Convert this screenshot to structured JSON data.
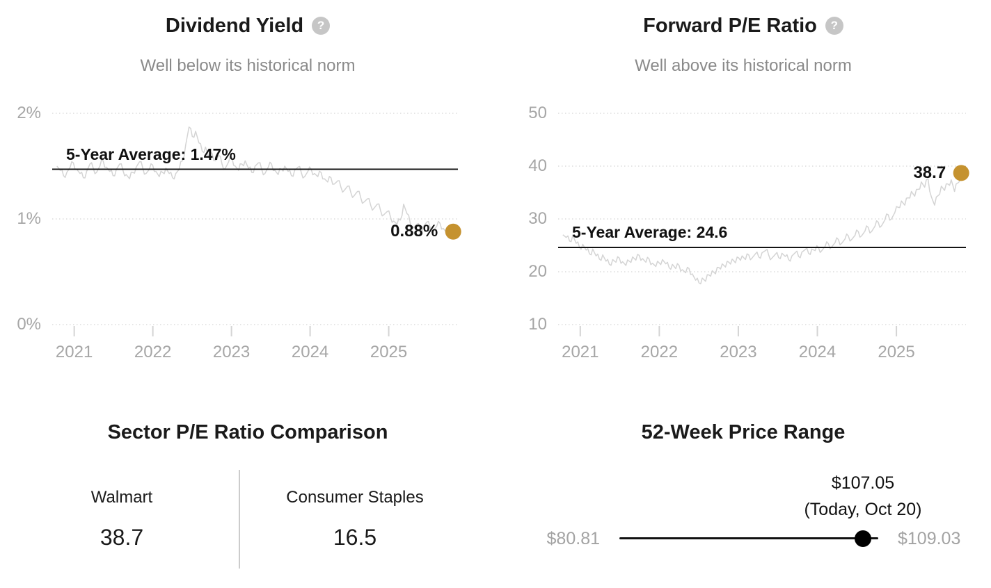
{
  "colors": {
    "accent_gold": "#C5922F",
    "series_line": "#d4d4d4",
    "gridline": "#cbcbcb",
    "axis_label": "#a6a6a6",
    "average_line": "#141414",
    "muted_text": "#8a8a8a",
    "help_icon_bg": "#c6c6c6",
    "slider": "#000000"
  },
  "chart_data": [
    {
      "type": "line",
      "title": "Dividend Yield",
      "subtitle": "Well below its historical norm",
      "help_icon": "question-mark",
      "xlim": [
        2020.72,
        2025.88
      ],
      "ylim": [
        0,
        2
      ],
      "grid": "dotted-horizontal",
      "legend_position": "none",
      "y_ticks": [
        {
          "v": 2,
          "label": "2%"
        },
        {
          "v": 1,
          "label": "1%"
        },
        {
          "v": 0,
          "label": "0%"
        }
      ],
      "x_ticks": [
        {
          "v": 2021,
          "label": "2021"
        },
        {
          "v": 2022,
          "label": "2022"
        },
        {
          "v": 2023,
          "label": "2023"
        },
        {
          "v": 2024,
          "label": "2024"
        },
        {
          "v": 2025,
          "label": "2025"
        }
      ],
      "average_line": {
        "value": 1.47,
        "label": "5-Year Average: 1.47%"
      },
      "endpoint": {
        "value": 0.88,
        "label": "0.88%"
      },
      "series": [
        {
          "name": "Dividend Yield",
          "x_start": 2020.78,
          "x_step": 0.042,
          "values": [
            1.5,
            1.46,
            1.41,
            1.44,
            1.49,
            1.53,
            1.47,
            1.43,
            1.39,
            1.45,
            1.52,
            1.48,
            1.44,
            1.5,
            1.55,
            1.49,
            1.45,
            1.41,
            1.47,
            1.52,
            1.46,
            1.42,
            1.38,
            1.44,
            1.49,
            1.54,
            1.48,
            1.43,
            1.47,
            1.51,
            1.45,
            1.4,
            1.44,
            1.48,
            1.43,
            1.39,
            1.43,
            1.47,
            1.55,
            1.7,
            1.87,
            1.78,
            1.83,
            1.72,
            1.64,
            1.68,
            1.58,
            1.62,
            1.55,
            1.6,
            1.52,
            1.48,
            1.54,
            1.58,
            1.5,
            1.46,
            1.52,
            1.55,
            1.48,
            1.44,
            1.5,
            1.53,
            1.47,
            1.43,
            1.49,
            1.52,
            1.46,
            1.42,
            1.47,
            1.5,
            1.45,
            1.41,
            1.46,
            1.49,
            1.44,
            1.4,
            1.45,
            1.47,
            1.43,
            1.4,
            1.44,
            1.38,
            1.35,
            1.39,
            1.33,
            1.36,
            1.3,
            1.27,
            1.31,
            1.25,
            1.22,
            1.26,
            1.2,
            1.16,
            1.19,
            1.13,
            1.1,
            1.14,
            1.08,
            1.04,
            1.07,
            1.02,
            0.98,
            0.95,
            0.99,
            1.14,
            1.05,
            0.96,
            0.92,
            0.95,
            0.9,
            0.93,
            0.97,
            0.92,
            0.89,
            0.93,
            0.96,
            0.91,
            0.87,
            0.9,
            0.88
          ]
        }
      ]
    },
    {
      "type": "line",
      "title": "Forward P/E Ratio",
      "subtitle": "Well above its historical norm",
      "help_icon": "question-mark",
      "xlim": [
        2020.72,
        2025.88
      ],
      "ylim": [
        10,
        50
      ],
      "grid": "dotted-horizontal",
      "legend_position": "none",
      "y_ticks": [
        {
          "v": 50,
          "label": "50"
        },
        {
          "v": 40,
          "label": "40"
        },
        {
          "v": 30,
          "label": "30"
        },
        {
          "v": 20,
          "label": "20"
        },
        {
          "v": 10,
          "label": "10"
        }
      ],
      "x_ticks": [
        {
          "v": 2021,
          "label": "2021"
        },
        {
          "v": 2022,
          "label": "2022"
        },
        {
          "v": 2023,
          "label": "2023"
        },
        {
          "v": 2024,
          "label": "2024"
        },
        {
          "v": 2025,
          "label": "2025"
        }
      ],
      "average_line": {
        "value": 24.6,
        "label": "5-Year Average: 24.6"
      },
      "endpoint": {
        "value": 38.7,
        "label": "38.7"
      },
      "series": [
        {
          "name": "Forward P/E Ratio",
          "x_start": 2020.78,
          "x_step": 0.042,
          "values": [
            27.0,
            26.5,
            25.8,
            26.9,
            25.4,
            24.6,
            25.2,
            24.1,
            23.4,
            24.3,
            23.0,
            22.4,
            23.2,
            22.0,
            21.4,
            22.3,
            21.8,
            22.6,
            21.9,
            21.2,
            22.0,
            22.8,
            22.2,
            23.1,
            22.5,
            21.8,
            22.4,
            21.6,
            21.0,
            21.7,
            22.3,
            21.5,
            20.8,
            21.4,
            20.6,
            21.2,
            20.4,
            19.8,
            20.6,
            19.6,
            18.4,
            17.9,
            18.8,
            18.2,
            19.4,
            20.2,
            19.6,
            20.8,
            21.5,
            20.9,
            21.8,
            22.4,
            21.7,
            22.6,
            23.0,
            22.3,
            23.2,
            22.6,
            23.4,
            22.8,
            23.6,
            24.0,
            23.2,
            22.6,
            23.3,
            22.7,
            23.5,
            22.9,
            22.3,
            23.0,
            23.6,
            22.9,
            23.7,
            24.2,
            23.5,
            24.3,
            24.0,
            24.6,
            24.0,
            24.8,
            25.3,
            24.7,
            25.5,
            26.1,
            25.4,
            26.2,
            26.8,
            26.1,
            26.9,
            27.6,
            26.8,
            27.7,
            28.4,
            27.6,
            28.6,
            29.4,
            28.7,
            29.8,
            30.8,
            30.0,
            31.2,
            32.2,
            33.4,
            32.6,
            34.0,
            35.2,
            34.3,
            35.6,
            37.0,
            36.0,
            37.6,
            34.2,
            32.6,
            34.4,
            36.2,
            35.4,
            36.6,
            37.4,
            35.2,
            36.8,
            38.7
          ]
        }
      ]
    }
  ],
  "sector_comparison": {
    "title": "Sector P/E Ratio Comparison",
    "columns": [
      {
        "label": "Walmart",
        "value": "38.7"
      },
      {
        "label": "Consumer Staples",
        "value": "16.5"
      }
    ]
  },
  "price_range": {
    "title": "52-Week Price Range",
    "low": "$80.81",
    "high": "$109.03",
    "current_price": "$107.05",
    "current_label": "(Today, Oct 20)",
    "current_fraction": 0.93
  }
}
